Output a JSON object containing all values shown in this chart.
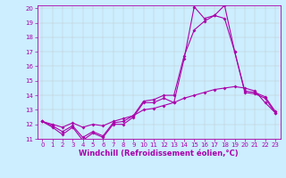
{
  "xlabel": "Windchill (Refroidissement éolien,°C)",
  "bg_color": "#cceeff",
  "line_color": "#aa00aa",
  "grid_color": "#bbbbbb",
  "xlim": [
    -0.5,
    23.5
  ],
  "ylim": [
    11,
    20.2
  ],
  "xticks": [
    0,
    1,
    2,
    3,
    4,
    5,
    6,
    7,
    8,
    9,
    10,
    11,
    12,
    13,
    14,
    15,
    16,
    17,
    18,
    19,
    20,
    21,
    22,
    23
  ],
  "yticks": [
    11,
    12,
    13,
    14,
    15,
    16,
    17,
    18,
    19,
    20
  ],
  "curve1_x": [
    0,
    1,
    2,
    3,
    4,
    5,
    6,
    7,
    8,
    9,
    10,
    11,
    12,
    13,
    14,
    15,
    16,
    17,
    18,
    19,
    20,
    21,
    22,
    23
  ],
  "curve1_y": [
    12.2,
    11.8,
    11.3,
    11.8,
    10.9,
    11.4,
    11.1,
    12.0,
    12.0,
    12.5,
    13.5,
    13.5,
    13.8,
    13.5,
    16.5,
    20.1,
    19.3,
    19.5,
    19.3,
    17.0,
    14.2,
    14.1,
    13.8,
    12.8
  ],
  "curve2_x": [
    0,
    1,
    2,
    3,
    4,
    5,
    6,
    7,
    8,
    9,
    10,
    11,
    12,
    13,
    14,
    15,
    16,
    17,
    18,
    19,
    20,
    21,
    22,
    23
  ],
  "curve2_y": [
    12.2,
    11.9,
    11.5,
    11.9,
    11.1,
    11.5,
    11.2,
    12.1,
    12.2,
    12.6,
    13.6,
    13.7,
    14.0,
    14.0,
    16.7,
    18.5,
    19.1,
    19.5,
    20.2,
    17.0,
    14.3,
    14.2,
    13.9,
    12.9
  ],
  "curve3_x": [
    0,
    1,
    2,
    3,
    4,
    5,
    6,
    7,
    8,
    9,
    10,
    11,
    12,
    13,
    14,
    15,
    16,
    17,
    18,
    19,
    20,
    21,
    22,
    23
  ],
  "curve3_y": [
    12.2,
    12.0,
    11.8,
    12.1,
    11.8,
    12.0,
    11.9,
    12.2,
    12.4,
    12.6,
    13.0,
    13.1,
    13.3,
    13.5,
    13.8,
    14.0,
    14.2,
    14.4,
    14.5,
    14.6,
    14.5,
    14.3,
    13.5,
    12.8
  ],
  "markersize": 2.0,
  "linewidth": 0.8,
  "tick_fontsize": 5.0,
  "label_fontsize": 6.0
}
